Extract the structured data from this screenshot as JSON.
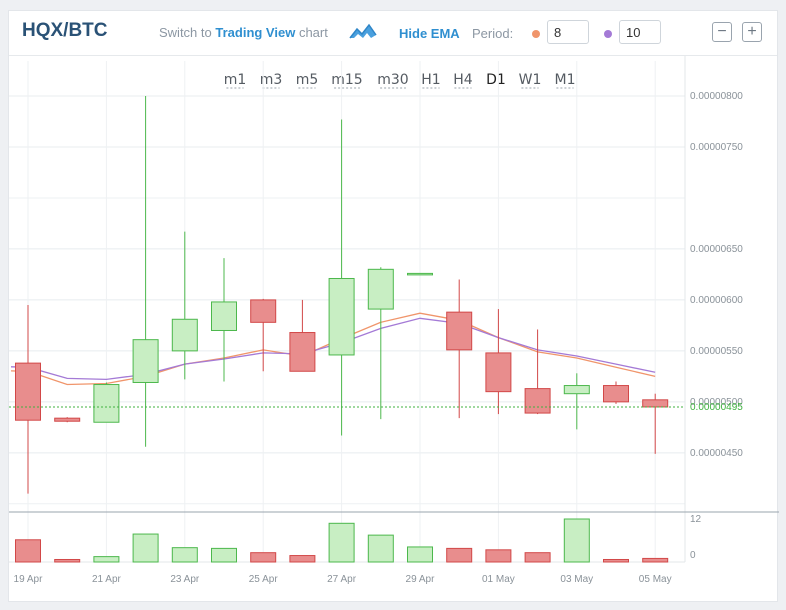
{
  "header": {
    "pair": "HQX/BTC",
    "switch_prefix": "Switch to",
    "switch_link": "Trading View",
    "switch_suffix": "chart",
    "hide_ema": "Hide EMA",
    "period_label": "Period:",
    "period_1": "8",
    "period_2": "10",
    "zoom_out": "−",
    "zoom_in": "+"
  },
  "timeframes": [
    "m1",
    "m3",
    "m5",
    "m15",
    "m30",
    "H1",
    "H4",
    "D1",
    "W1",
    "M1"
  ],
  "active_timeframe": "D1",
  "colors": {
    "up": "#4cb84c",
    "up_fill": "#c8eec3",
    "down": "#d24848",
    "down_fill": "#e88d8d",
    "ema_orange": "#f0956b",
    "ema_purple": "#a47ad6",
    "current": "#3fb13f"
  },
  "chart_data": {
    "type": "candlestick",
    "pair": "HQX/BTC",
    "interval": "D1",
    "x_tick_labels": [
      "19 Apr",
      "21 Apr",
      "23 Apr",
      "25 Apr",
      "27 Apr",
      "29 Apr",
      "01 May",
      "03 May",
      "05 May"
    ],
    "y_tick_labels": [
      "0.00000800",
      "0.00000750",
      "0.00000650",
      "0.00000600",
      "0.00000550",
      "0.00000500",
      "0.00000450"
    ],
    "ylim": [
      3.9e-06,
      8e-06
    ],
    "current_price": "0.00000495",
    "volume_axis_labels": [
      "12",
      "0"
    ],
    "volume_ylim": [
      0,
      12
    ],
    "candles": [
      {
        "open": 5.38e-06,
        "high": 5.95e-06,
        "low": 4.1e-06,
        "close": 4.82e-06,
        "volume": 6.2
      },
      {
        "open": 4.84e-06,
        "high": 4.85e-06,
        "low": 4.8e-06,
        "close": 4.81e-06,
        "volume": 0.7
      },
      {
        "open": 4.8e-06,
        "high": 5.19e-06,
        "low": 4.8e-06,
        "close": 5.17e-06,
        "volume": 1.5
      },
      {
        "open": 5.19e-06,
        "high": 8e-06,
        "low": 4.56e-06,
        "close": 5.61e-06,
        "volume": 7.8
      },
      {
        "open": 5.5e-06,
        "high": 6.67e-06,
        "low": 5.22e-06,
        "close": 5.81e-06,
        "volume": 4.0
      },
      {
        "open": 5.7e-06,
        "high": 6.41e-06,
        "low": 5.2e-06,
        "close": 5.98e-06,
        "volume": 3.8
      },
      {
        "open": 6e-06,
        "high": 6.01e-06,
        "low": 5.3e-06,
        "close": 5.78e-06,
        "volume": 2.6
      },
      {
        "open": 5.68e-06,
        "high": 6e-06,
        "low": 5.3e-06,
        "close": 5.3e-06,
        "volume": 1.8
      },
      {
        "open": 5.46e-06,
        "high": 7.77e-06,
        "low": 4.67e-06,
        "close": 6.21e-06,
        "volume": 10.8
      },
      {
        "open": 5.91e-06,
        "high": 6.32e-06,
        "low": 4.83e-06,
        "close": 6.3e-06,
        "volume": 7.5
      },
      {
        "open": 6.26e-06,
        "high": 6.26e-06,
        "low": 6.26e-06,
        "close": 6.26e-06,
        "volume": 4.2
      },
      {
        "open": 5.88e-06,
        "high": 6.2e-06,
        "low": 4.84e-06,
        "close": 5.51e-06,
        "volume": 3.8
      },
      {
        "open": 5.48e-06,
        "high": 5.91e-06,
        "low": 4.88e-06,
        "close": 5.1e-06,
        "volume": 3.4
      },
      {
        "open": 5.13e-06,
        "high": 5.71e-06,
        "low": 4.88e-06,
        "close": 4.89e-06,
        "volume": 2.6
      },
      {
        "open": 5.08e-06,
        "high": 5.28e-06,
        "low": 4.73e-06,
        "close": 5.16e-06,
        "volume": 12.0
      },
      {
        "open": 5.16e-06,
        "high": 5.2e-06,
        "low": 4.98e-06,
        "close": 5e-06,
        "volume": 0.7
      },
      {
        "open": 5.02e-06,
        "high": 5.08e-06,
        "low": 4.49e-06,
        "close": 4.95e-06,
        "volume": 1.0
      }
    ],
    "ema_8": [
      5.3e-06,
      5.17e-06,
      5.18e-06,
      5.25e-06,
      5.37e-06,
      5.43e-06,
      5.51e-06,
      5.45e-06,
      5.62e-06,
      5.78e-06,
      5.87e-06,
      5.8e-06,
      5.63e-06,
      5.49e-06,
      5.43e-06,
      5.34e-06,
      5.25e-06
    ],
    "ema_10": [
      5.34e-06,
      5.23e-06,
      5.22e-06,
      5.27e-06,
      5.37e-06,
      5.42e-06,
      5.48e-06,
      5.47e-06,
      5.58e-06,
      5.72e-06,
      5.82e-06,
      5.77e-06,
      5.63e-06,
      5.51e-06,
      5.45e-06,
      5.37e-06,
      5.29e-06
    ]
  }
}
